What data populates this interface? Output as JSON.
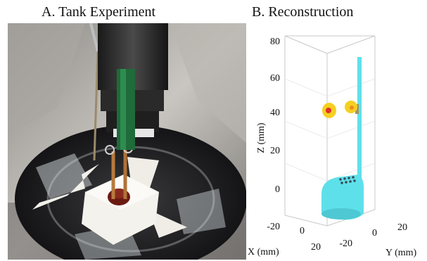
{
  "panel_a": {
    "title": "A. Tank Experiment"
  },
  "panel_b": {
    "title": "B. Reconstruction",
    "z_axis": {
      "label": "Z (mm)",
      "ticks": [
        "80",
        "60",
        "40",
        "20",
        "0",
        "-20"
      ]
    },
    "x_axis": {
      "label": "X (mm)",
      "ticks": [
        "0",
        "20"
      ]
    },
    "y_axis": {
      "label": "Y (mm)",
      "ticks": [
        "-20",
        "0",
        "20"
      ]
    },
    "colors": {
      "electrode": "#5ee0ea",
      "activity_outer": "#f5d020",
      "activity_inner": "#e0302a",
      "box_edge": "#c8c8c8"
    }
  }
}
